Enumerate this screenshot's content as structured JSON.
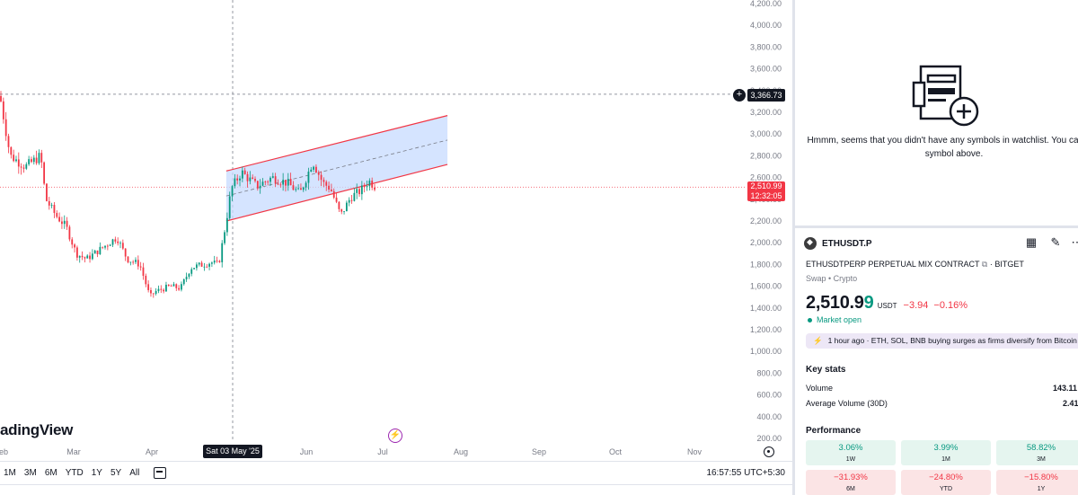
{
  "chart": {
    "price_ticks": [
      "4,200.00",
      "4,000.00",
      "3,800.00",
      "3,600.00",
      "3,400.00",
      "3,200.00",
      "3,000.00",
      "2,800.00",
      "2,600.00",
      "2,400.00",
      "2,200.00",
      "2,000.00",
      "1,800.00",
      "1,600.00",
      "1,400.00",
      "1,200.00",
      "1,000.00",
      "800.00",
      "600.00",
      "400.00",
      "200.00"
    ],
    "date_ticks": [
      "eb",
      "Mar",
      "Apr",
      "May",
      "Jun",
      "Jul",
      "Aug",
      "Sep",
      "Oct",
      "Nov"
    ],
    "crosshair_price": "3,366.73",
    "crosshair_date": "Sat 03 May '25",
    "last_price": "2,510.99",
    "countdown": "12:32:05",
    "watermark": "adingView",
    "colors": {
      "up": "#089981",
      "down": "#f23645",
      "channel_fill": "#c7dbff",
      "channel_line": "#f23645"
    }
  },
  "chart_data": {
    "type": "candlestick",
    "symbol": "ETHUSDT.P",
    "ylim": [
      200,
      4200
    ],
    "price_levels": {
      "last_price": 2510.99,
      "crosshair_price": 3366.73
    },
    "close_path": [
      {
        "x": "2025-02-08",
        "y": 3350
      },
      {
        "x": "2025-02-12",
        "y": 2800
      },
      {
        "x": "2025-02-18",
        "y": 2700
      },
      {
        "x": "2025-02-24",
        "y": 2800
      },
      {
        "x": "2025-02-26",
        "y": 2400
      },
      {
        "x": "2025-03-02",
        "y": 2250
      },
      {
        "x": "2025-03-06",
        "y": 2150
      },
      {
        "x": "2025-03-10",
        "y": 1900
      },
      {
        "x": "2025-03-14",
        "y": 1850
      },
      {
        "x": "2025-03-20",
        "y": 1950
      },
      {
        "x": "2025-03-26",
        "y": 2050
      },
      {
        "x": "2025-03-30",
        "y": 1850
      },
      {
        "x": "2025-04-04",
        "y": 1800
      },
      {
        "x": "2025-04-08",
        "y": 1500
      },
      {
        "x": "2025-04-10",
        "y": 1550
      },
      {
        "x": "2025-04-16",
        "y": 1600
      },
      {
        "x": "2025-04-20",
        "y": 1580
      },
      {
        "x": "2025-04-24",
        "y": 1770
      },
      {
        "x": "2025-05-02",
        "y": 1820
      },
      {
        "x": "2025-05-05",
        "y": 1800
      },
      {
        "x": "2025-05-08",
        "y": 2200
      },
      {
        "x": "2025-05-10",
        "y": 2500
      },
      {
        "x": "2025-05-14",
        "y": 2650
      },
      {
        "x": "2025-05-20",
        "y": 2520
      },
      {
        "x": "2025-05-26",
        "y": 2600
      },
      {
        "x": "2025-06-01",
        "y": 2550
      },
      {
        "x": "2025-06-06",
        "y": 2450
      },
      {
        "x": "2025-06-11",
        "y": 2750
      },
      {
        "x": "2025-06-15",
        "y": 2550
      },
      {
        "x": "2025-06-18",
        "y": 2500
      },
      {
        "x": "2025-06-22",
        "y": 2250
      },
      {
        "x": "2025-06-26",
        "y": 2420
      },
      {
        "x": "2025-06-30",
        "y": 2480
      },
      {
        "x": "2025-07-03",
        "y": 2570
      },
      {
        "x": "2025-07-06",
        "y": 2510.99
      }
    ],
    "channel": {
      "upper": [
        {
          "x": "2025-05-08",
          "y": 2660
        },
        {
          "x": "2025-08-03",
          "y": 3170
        }
      ],
      "lower": [
        {
          "x": "2025-05-08",
          "y": 2200
        },
        {
          "x": "2025-08-03",
          "y": 2720
        }
      ]
    }
  },
  "bottom_bar": {
    "ranges": [
      "1M",
      "3M",
      "6M",
      "YTD",
      "1Y",
      "5Y",
      "All"
    ],
    "clock": "16:57:55 UTC+5:30"
  },
  "watchlist": {
    "empty_message": "Hmmm, seems that you didn't have any symbols in watchlist. You can add symbol above."
  },
  "symbol": {
    "name": "ETHUSDT.P",
    "contract": "ETHUSDTPERP PERPETUAL MIX CONTRACT",
    "exchange": "· BITGET",
    "type": "Swap • Crypto",
    "price_main": "2,510.9",
    "price_last_digit": "9",
    "currency": "USDT",
    "change": "−3.94",
    "change_pct": "−0.16%",
    "market_status": "Market open",
    "news": "1 hour ago · ETH, SOL, BNB buying surges as firms diversify from Bitcoin",
    "icons": {
      "grid": "grid-icon",
      "edit": "edit-icon",
      "more": "more-icon",
      "external": "external-link-icon"
    }
  },
  "key_stats": {
    "title": "Key stats",
    "rows": [
      {
        "label": "Volume",
        "value": "143.11"
      },
      {
        "label": "Average Volume (30D)",
        "value": "2.41"
      }
    ]
  },
  "performance": {
    "title": "Performance",
    "cells": [
      {
        "value": "3.06%",
        "label": "1W",
        "dir": "pos"
      },
      {
        "value": "3.99%",
        "label": "1M",
        "dir": "pos"
      },
      {
        "value": "58.82%",
        "label": "3M",
        "dir": "pos"
      },
      {
        "value": "−31.93%",
        "label": "6M",
        "dir": "neg"
      },
      {
        "value": "−24.80%",
        "label": "YTD",
        "dir": "neg"
      },
      {
        "value": "−15.80%",
        "label": "1Y",
        "dir": "neg"
      }
    ]
  }
}
